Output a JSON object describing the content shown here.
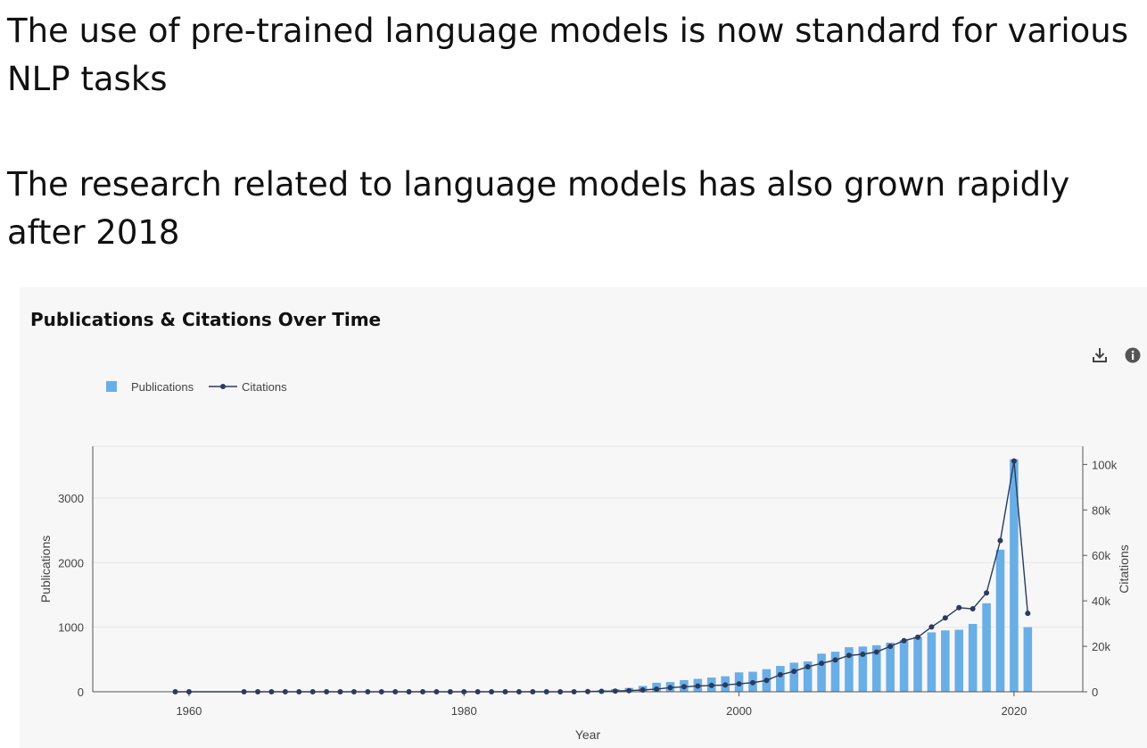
{
  "slide": {
    "headline_1": "The use of pre-trained language models is now standard for various NLP tasks",
    "headline_2": "The research related to language models has also grown rapidly after 2018"
  },
  "toolbar": {
    "download_icon": "download-icon",
    "info_icon": "info-icon"
  },
  "colors": {
    "bar": "#6aaee6",
    "line": "#2b3a5c",
    "axis": "#555555",
    "grid": "#e6e6e6",
    "text": "#444444",
    "panel": "#f7f7f8"
  },
  "chart_data": {
    "type": "bar",
    "title": "Publications & Citations Over Time",
    "xlabel": "Year",
    "ylabel": "Publications",
    "y2label": "Citations",
    "xlim": [
      1953,
      2025
    ],
    "ylim": [
      0,
      3800
    ],
    "y2lim": [
      0,
      108000
    ],
    "x_ticks": [
      1960,
      1980,
      2000,
      2020
    ],
    "x_tick_labels": [
      "1960",
      "1980",
      "2000",
      "2020"
    ],
    "y_ticks": [
      0,
      1000,
      2000,
      3000
    ],
    "y_tick_labels": [
      "0",
      "1000",
      "2000",
      "3000"
    ],
    "y2_ticks": [
      0,
      20000,
      40000,
      60000,
      80000,
      100000
    ],
    "y2_tick_labels": [
      "0",
      "20k",
      "40k",
      "60k",
      "80k",
      "100k"
    ],
    "legend": {
      "position": "top-left",
      "entries": [
        "Publications",
        "Citations"
      ]
    },
    "grid": true,
    "x": [
      1959,
      1960,
      1964,
      1965,
      1966,
      1967,
      1968,
      1969,
      1970,
      1971,
      1972,
      1973,
      1974,
      1975,
      1976,
      1977,
      1978,
      1979,
      1980,
      1981,
      1982,
      1983,
      1984,
      1985,
      1986,
      1987,
      1988,
      1989,
      1990,
      1991,
      1992,
      1993,
      1994,
      1995,
      1996,
      1997,
      1998,
      1999,
      2000,
      2001,
      2002,
      2003,
      2004,
      2005,
      2006,
      2007,
      2008,
      2009,
      2010,
      2011,
      2012,
      2013,
      2014,
      2015,
      2016,
      2017,
      2018,
      2019,
      2020,
      2021
    ],
    "series": [
      {
        "name": "Publications",
        "type": "bar",
        "axis": "left",
        "values": [
          2,
          2,
          2,
          2,
          2,
          2,
          2,
          2,
          2,
          2,
          2,
          2,
          3,
          3,
          3,
          3,
          3,
          3,
          4,
          4,
          4,
          5,
          5,
          6,
          7,
          8,
          10,
          15,
          25,
          40,
          60,
          90,
          140,
          150,
          180,
          200,
          220,
          240,
          300,
          310,
          350,
          400,
          450,
          470,
          590,
          620,
          690,
          700,
          720,
          760,
          800,
          850,
          920,
          950,
          960,
          1050,
          1370,
          2200,
          3600,
          1000
        ]
      },
      {
        "name": "Citations",
        "type": "line",
        "axis": "right",
        "values": [
          0,
          0,
          0,
          0,
          0,
          0,
          0,
          0,
          0,
          0,
          0,
          0,
          0,
          0,
          0,
          0,
          0,
          0,
          0,
          0,
          0,
          0,
          0,
          0,
          0,
          0,
          0,
          100,
          200,
          300,
          500,
          800,
          1200,
          1800,
          2200,
          2500,
          2800,
          3000,
          3500,
          4000,
          5000,
          7500,
          9000,
          11000,
          12500,
          14000,
          16000,
          16500,
          17500,
          20000,
          22500,
          24000,
          28500,
          32500,
          37000,
          36500,
          43500,
          66500,
          101500,
          34500
        ]
      }
    ]
  }
}
